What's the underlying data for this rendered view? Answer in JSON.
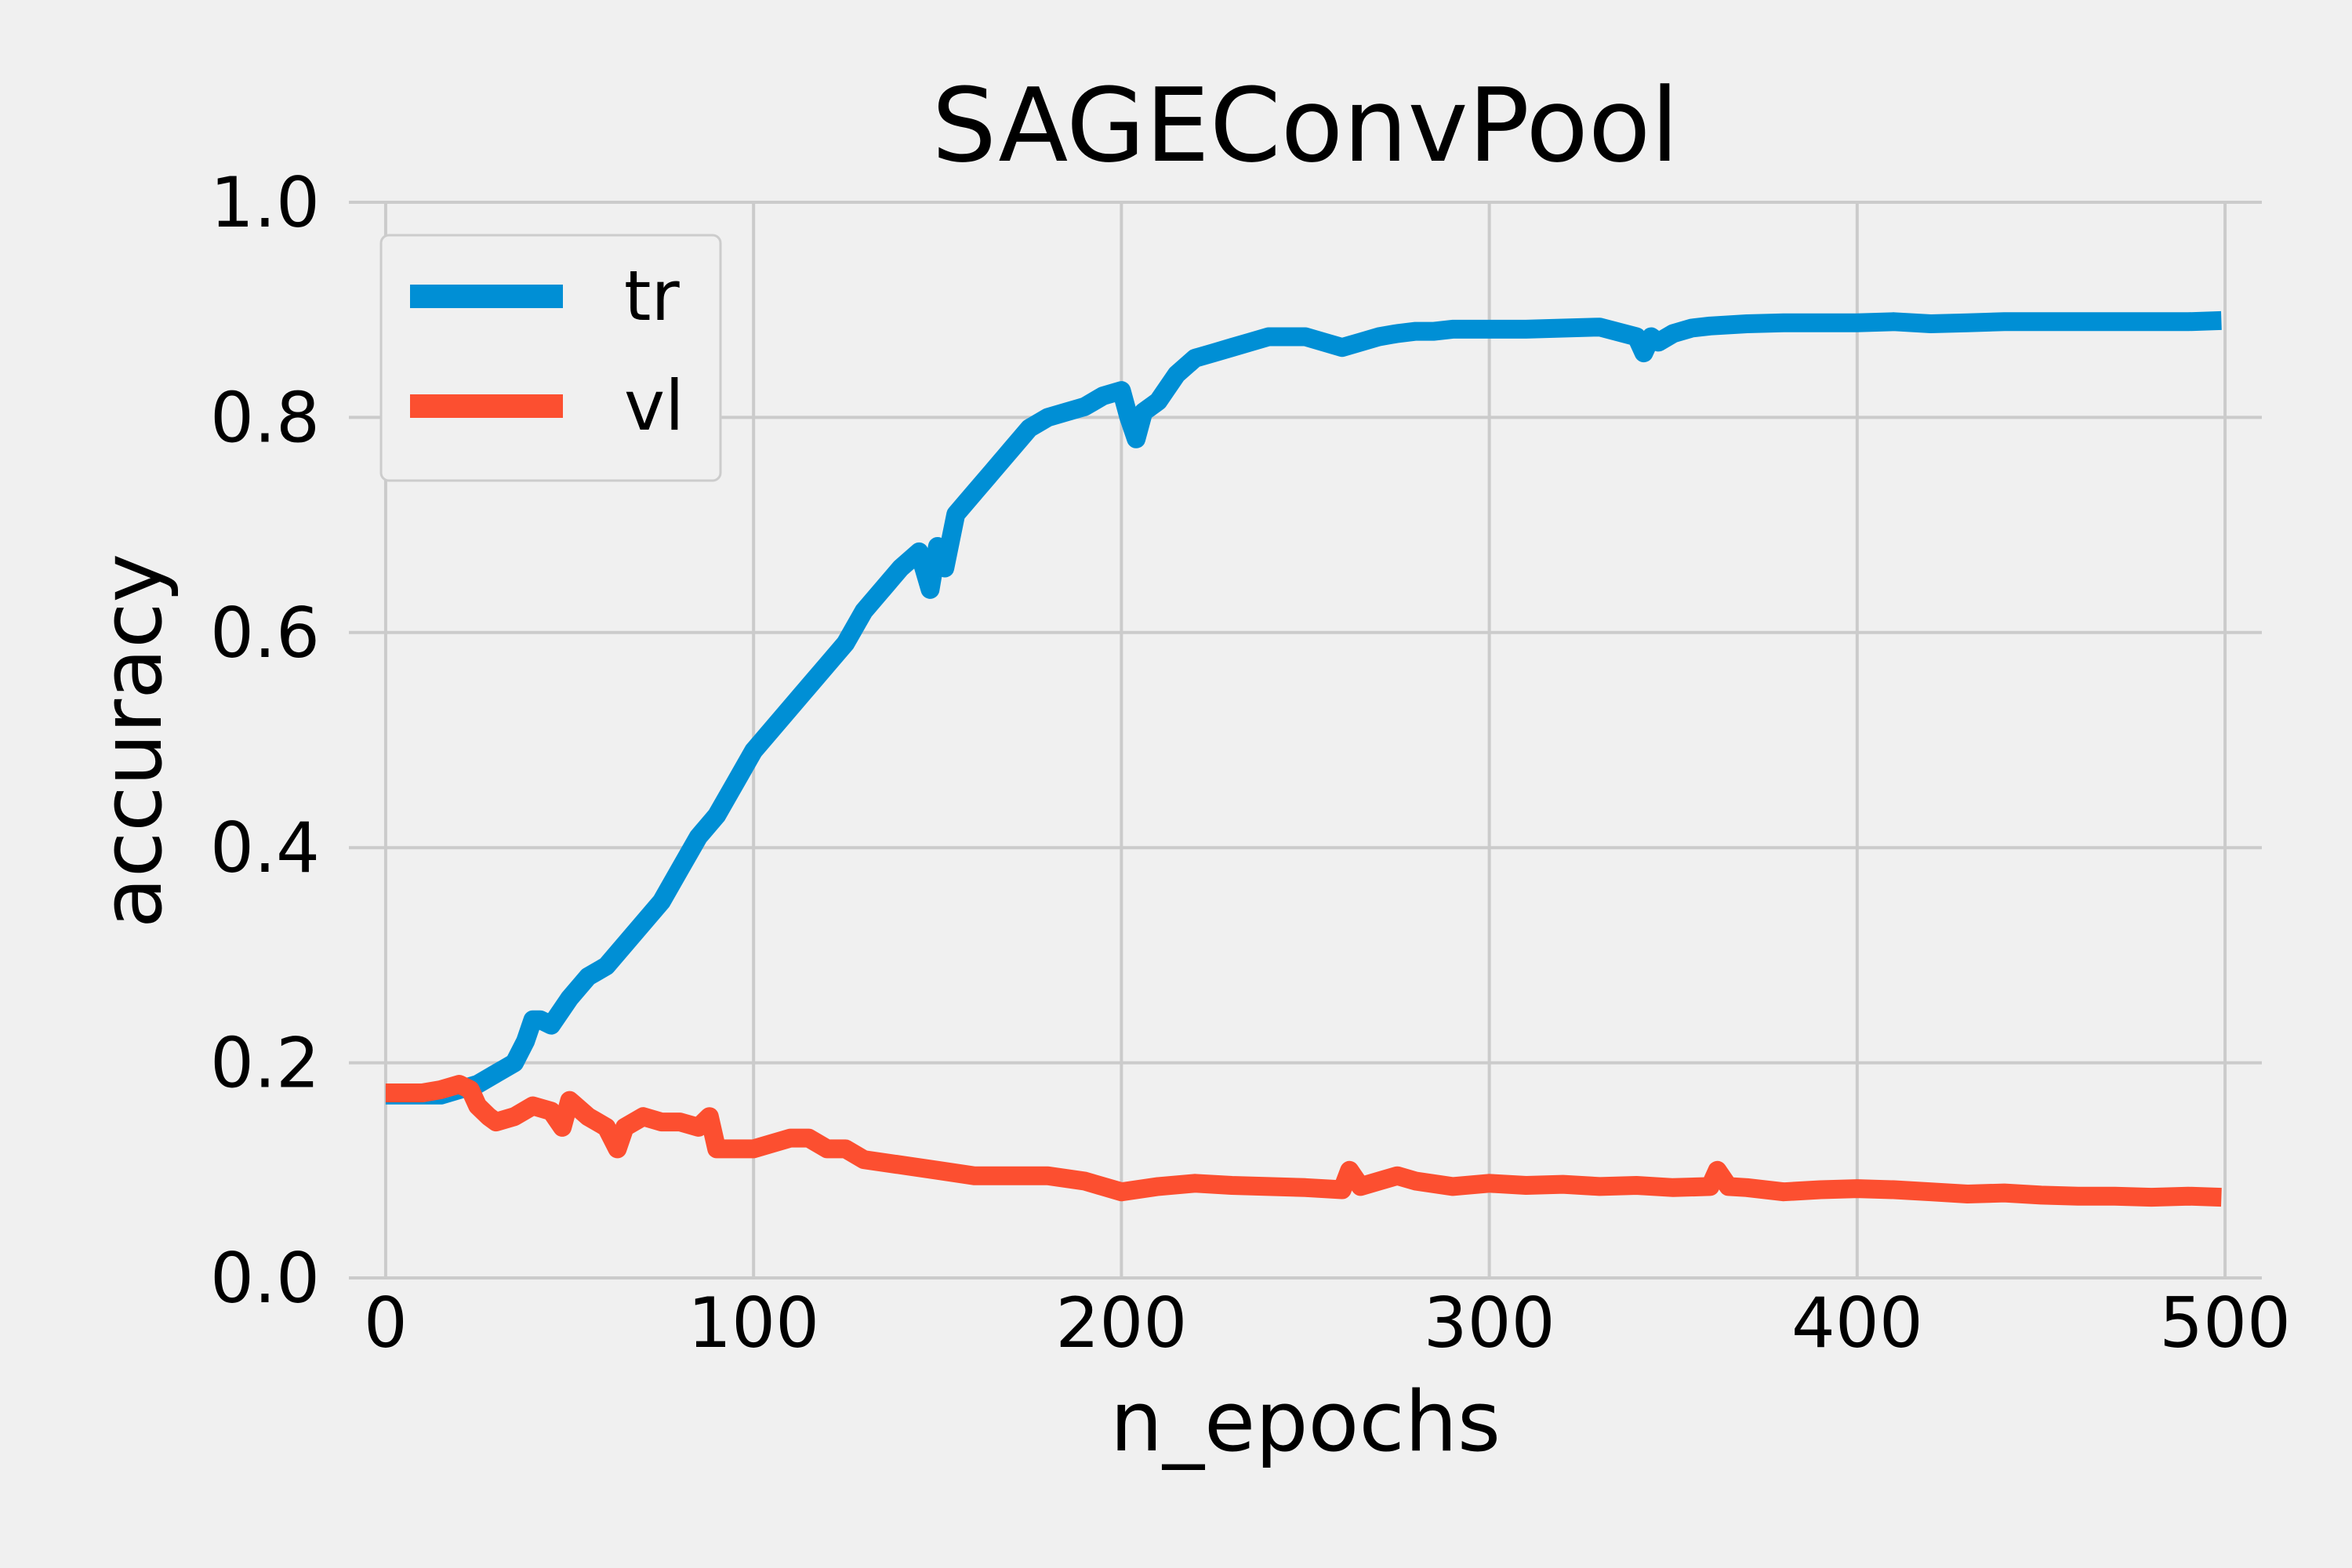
{
  "chart_data": {
    "type": "line",
    "title": "SAGEConvPool",
    "xlabel": "n_epochs",
    "ylabel": "accuracy",
    "xlim": [
      -10,
      510
    ],
    "ylim": [
      0.0,
      1.0
    ],
    "xticks": [
      0,
      100,
      200,
      300,
      400,
      500
    ],
    "yticks": [
      0.0,
      0.2,
      0.4,
      0.6,
      0.8,
      1.0
    ],
    "xtick_labels": [
      "0",
      "100",
      "200",
      "300",
      "400",
      "500"
    ],
    "ytick_labels": [
      "0.0",
      "0.2",
      "0.4",
      "0.6",
      "0.8",
      "1.0"
    ],
    "grid": true,
    "legend_position": "top-left",
    "series": [
      {
        "name": "tr",
        "color": "#008fd5",
        "x": [
          0,
          5,
          10,
          15,
          20,
          25,
          30,
          35,
          38,
          40,
          42,
          45,
          50,
          55,
          60,
          65,
          70,
          75,
          80,
          85,
          90,
          95,
          100,
          105,
          110,
          115,
          120,
          125,
          130,
          135,
          140,
          145,
          148,
          150,
          152,
          155,
          160,
          165,
          170,
          175,
          180,
          185,
          190,
          195,
          200,
          202,
          204,
          206,
          210,
          215,
          220,
          225,
          230,
          235,
          240,
          245,
          250,
          255,
          260,
          265,
          270,
          275,
          280,
          285,
          290,
          300,
          310,
          320,
          330,
          340,
          342,
          344,
          346,
          350,
          355,
          360,
          370,
          380,
          390,
          400,
          410,
          420,
          430,
          440,
          450,
          460,
          470,
          480,
          490,
          499
        ],
        "y": [
          0.17,
          0.17,
          0.17,
          0.17,
          0.175,
          0.18,
          0.19,
          0.2,
          0.22,
          0.24,
          0.24,
          0.235,
          0.26,
          0.28,
          0.29,
          0.31,
          0.33,
          0.35,
          0.38,
          0.41,
          0.43,
          0.46,
          0.49,
          0.51,
          0.53,
          0.55,
          0.57,
          0.59,
          0.62,
          0.64,
          0.66,
          0.675,
          0.64,
          0.68,
          0.66,
          0.71,
          0.73,
          0.75,
          0.77,
          0.79,
          0.8,
          0.805,
          0.81,
          0.82,
          0.825,
          0.8,
          0.78,
          0.805,
          0.815,
          0.84,
          0.855,
          0.86,
          0.865,
          0.87,
          0.875,
          0.875,
          0.875,
          0.87,
          0.865,
          0.87,
          0.875,
          0.878,
          0.88,
          0.88,
          0.882,
          0.882,
          0.882,
          0.883,
          0.884,
          0.875,
          0.86,
          0.875,
          0.87,
          0.878,
          0.883,
          0.885,
          0.887,
          0.888,
          0.888,
          0.888,
          0.889,
          0.887,
          0.888,
          0.889,
          0.889,
          0.889,
          0.889,
          0.889,
          0.889,
          0.89
        ]
      },
      {
        "name": "vl",
        "color": "#fc4f30",
        "x": [
          0,
          5,
          10,
          15,
          20,
          23,
          25,
          28,
          30,
          35,
          40,
          45,
          48,
          50,
          55,
          60,
          63,
          65,
          70,
          75,
          80,
          85,
          88,
          90,
          95,
          100,
          105,
          110,
          115,
          120,
          125,
          130,
          140,
          150,
          160,
          170,
          180,
          190,
          200,
          210,
          220,
          230,
          240,
          250,
          260,
          262,
          265,
          270,
          275,
          280,
          290,
          300,
          310,
          320,
          330,
          340,
          350,
          360,
          362,
          365,
          370,
          380,
          390,
          400,
          410,
          420,
          430,
          440,
          450,
          460,
          470,
          480,
          490,
          499
        ],
        "y": [
          0.172,
          0.172,
          0.172,
          0.175,
          0.18,
          0.175,
          0.16,
          0.15,
          0.145,
          0.15,
          0.16,
          0.155,
          0.14,
          0.165,
          0.15,
          0.14,
          0.12,
          0.14,
          0.15,
          0.145,
          0.145,
          0.14,
          0.15,
          0.12,
          0.12,
          0.12,
          0.125,
          0.13,
          0.13,
          0.12,
          0.12,
          0.11,
          0.105,
          0.1,
          0.095,
          0.095,
          0.095,
          0.09,
          0.08,
          0.085,
          0.088,
          0.086,
          0.085,
          0.084,
          0.082,
          0.1,
          0.085,
          0.09,
          0.095,
          0.09,
          0.085,
          0.088,
          0.086,
          0.087,
          0.085,
          0.086,
          0.084,
          0.085,
          0.1,
          0.085,
          0.084,
          0.08,
          0.082,
          0.083,
          0.082,
          0.08,
          0.078,
          0.079,
          0.077,
          0.076,
          0.076,
          0.075,
          0.076,
          0.075
        ]
      }
    ]
  }
}
